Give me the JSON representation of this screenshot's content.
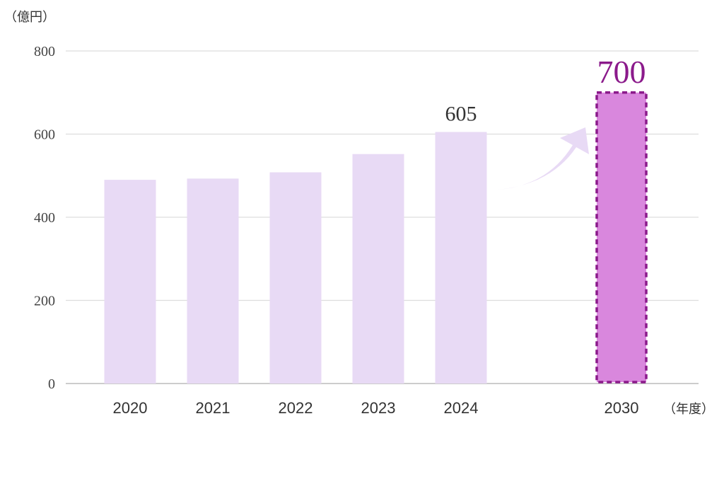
{
  "chart_data": {
    "type": "bar",
    "y_unit_label": "（億円）",
    "x_unit_label": "（年度）",
    "categories": [
      "2020",
      "2021",
      "2022",
      "2023",
      "2024",
      "2030"
    ],
    "values": [
      490,
      493,
      508,
      552,
      605,
      700
    ],
    "ylim": [
      0,
      800
    ],
    "yticks": [
      "0",
      "200",
      "400",
      "600",
      "800"
    ],
    "grid": true,
    "data_labels": {
      "2024": "605",
      "2030": "700"
    },
    "target_category": "2030",
    "colors": {
      "bar": "#e8daf5",
      "target_bar_fill": "#d987dd",
      "target_bar_border": "#8b1a8b",
      "target_label": "#8b1a8b",
      "arrow": "#e8daf5",
      "grid": "#dddddd",
      "baseline": "#bbbbbb"
    }
  }
}
